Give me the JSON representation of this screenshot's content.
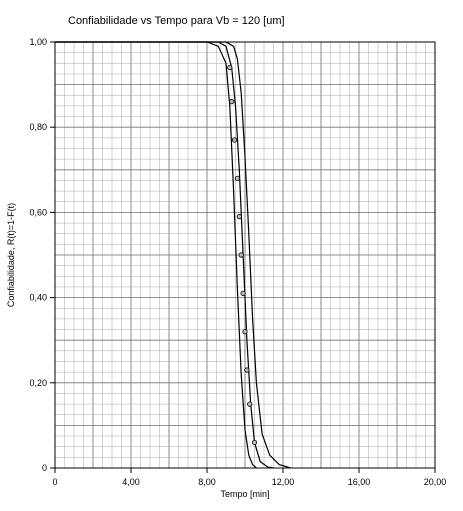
{
  "chart_data": {
    "type": "line",
    "title": "Confiabilidade vs Tempo para  Vb = 120 [um]",
    "xlabel": "Tempo [min]",
    "ylabel": "Confiabilidade, R(t)=1-F(t)",
    "xlim": [
      0,
      20
    ],
    "ylim": [
      0,
      1
    ],
    "x_ticks": [
      "0",
      "4,00",
      "8,00",
      "12,00",
      "16,00",
      "20,00"
    ],
    "y_ticks": [
      "0",
      "0,20",
      "0,40",
      "0,60",
      "0,80",
      "1,00"
    ],
    "grid": true,
    "series": [
      {
        "role": "lower-bound",
        "x": [
          0,
          8,
          8.6,
          9.0,
          9.2,
          9.4,
          9.6,
          9.8,
          10.0,
          10.2,
          10.4,
          10.6
        ],
        "y": [
          1,
          1,
          0.99,
          0.95,
          0.85,
          0.65,
          0.42,
          0.22,
          0.09,
          0.03,
          0.008,
          0
        ]
      },
      {
        "role": "fit",
        "x": [
          0,
          8.6,
          9.0,
          9.3,
          9.5,
          9.7,
          9.9,
          10.1,
          10.3,
          10.5,
          10.8,
          11.2,
          11.5
        ],
        "y": [
          1,
          1,
          0.99,
          0.94,
          0.85,
          0.7,
          0.5,
          0.3,
          0.15,
          0.06,
          0.015,
          0.002,
          0
        ]
      },
      {
        "role": "upper-bound",
        "x": [
          0,
          9.0,
          9.4,
          9.6,
          9.8,
          10.0,
          10.2,
          10.4,
          10.6,
          10.9,
          11.3,
          11.8,
          12.4
        ],
        "y": [
          1,
          1,
          0.99,
          0.96,
          0.88,
          0.73,
          0.55,
          0.35,
          0.2,
          0.08,
          0.03,
          0.008,
          0
        ]
      }
    ],
    "points": {
      "x": [
        9.2,
        9.3,
        9.45,
        9.6,
        9.7,
        9.8,
        9.9,
        10.0,
        10.1,
        10.25,
        10.5
      ],
      "y": [
        0.94,
        0.86,
        0.77,
        0.68,
        0.59,
        0.5,
        0.41,
        0.32,
        0.23,
        0.15,
        0.06
      ]
    }
  }
}
